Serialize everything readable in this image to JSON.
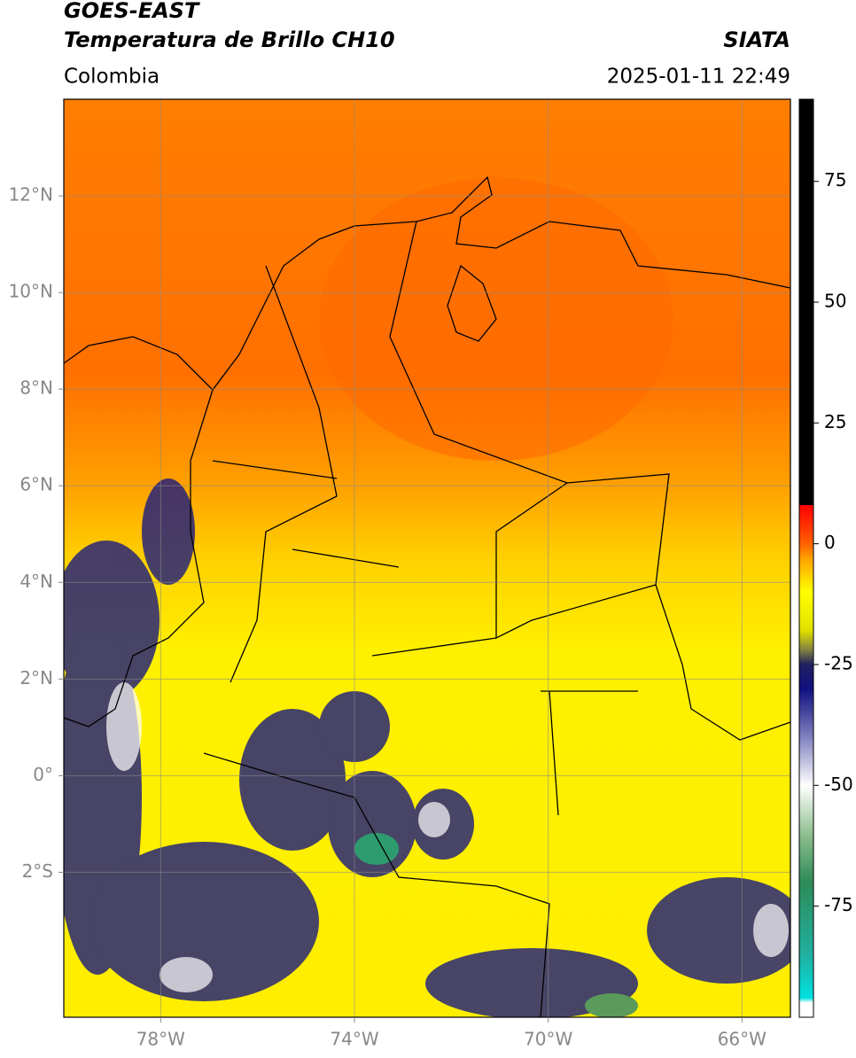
{
  "header": {
    "title": "GOES-EAST",
    "subtitle": "Temperatura de Brillo CH10",
    "source": "SIATA",
    "region": "Colombia",
    "datetime": "2025-01-11 22:49"
  },
  "map": {
    "xlim": [
      -80,
      -65
    ],
    "ylim": [
      -5,
      14
    ],
    "xticks": [
      {
        "value": -78,
        "label": "78°W"
      },
      {
        "value": -74,
        "label": "74°W"
      },
      {
        "value": -70,
        "label": "70°W"
      },
      {
        "value": -66,
        "label": "66°W"
      }
    ],
    "yticks": [
      {
        "value": 12,
        "label": "12°N"
      },
      {
        "value": 10,
        "label": "10°N"
      },
      {
        "value": 8,
        "label": "8°N"
      },
      {
        "value": 6,
        "label": "6°N"
      },
      {
        "value": 4,
        "label": "4°N"
      },
      {
        "value": 2,
        "label": "2°N"
      },
      {
        "value": 0,
        "label": "0°"
      },
      {
        "value": -2,
        "label": "2°S"
      }
    ],
    "grid": true
  },
  "colorbar": {
    "lim": [
      -98,
      92
    ],
    "ticks": [
      75,
      50,
      25,
      0,
      -25,
      -50,
      -75
    ],
    "colormap": [
      {
        "value": -98,
        "color": "#ffffff"
      },
      {
        "value": -95,
        "color": "#ffffff"
      },
      {
        "value": -94,
        "color": "#00e0e0"
      },
      {
        "value": -85,
        "color": "#20b0a0"
      },
      {
        "value": -70,
        "color": "#2e8b57"
      },
      {
        "value": -60,
        "color": "#90c090"
      },
      {
        "value": -50,
        "color": "#ffffff"
      },
      {
        "value": -40,
        "color": "#8080c0"
      },
      {
        "value": -30,
        "color": "#101080"
      },
      {
        "value": -25,
        "color": "#202060"
      },
      {
        "value": -22,
        "color": "#808040"
      },
      {
        "value": -18,
        "color": "#e0e000"
      },
      {
        "value": -10,
        "color": "#ffff00"
      },
      {
        "value": -3,
        "color": "#ffa000"
      },
      {
        "value": 0,
        "color": "#ff6000"
      },
      {
        "value": 8,
        "color": "#ff0000"
      },
      {
        "value": 8,
        "color": "#000000"
      },
      {
        "value": 92,
        "color": "#000000"
      }
    ]
  }
}
